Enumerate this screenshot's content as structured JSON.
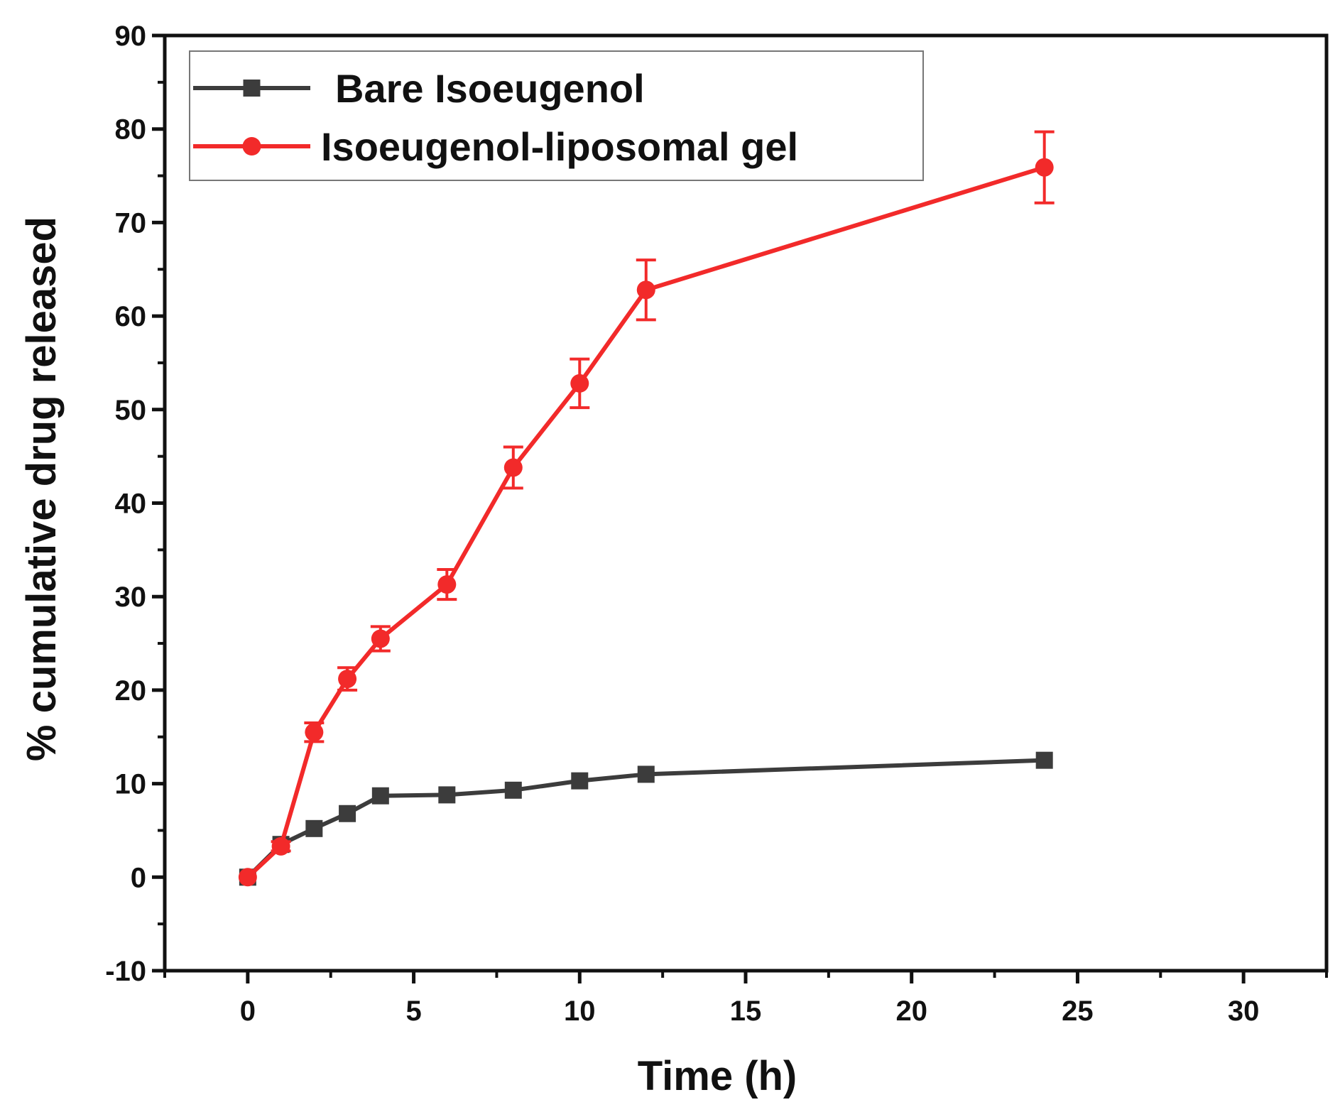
{
  "chart_data": {
    "type": "line",
    "title": "",
    "xlabel": "Time (h)",
    "ylabel": "% cumulative drug released",
    "xlim": [
      -2.5,
      32.5
    ],
    "ylim": [
      -10,
      90
    ],
    "xticks": [
      0,
      5,
      10,
      15,
      20,
      25,
      30
    ],
    "yticks": [
      -10,
      0,
      10,
      20,
      30,
      40,
      50,
      60,
      70,
      80,
      90
    ],
    "x_tick_labels": [
      "0",
      "5",
      "10",
      "15",
      "20",
      "25",
      "30"
    ],
    "y_tick_labels": [
      "-10",
      "0",
      "10",
      "20",
      "30",
      "40",
      "50",
      "60",
      "70",
      "80",
      "90"
    ],
    "grid": false,
    "legend_position": "top-left",
    "series": [
      {
        "name": "Bare Isoeugenol",
        "color": "#3c3c3c",
        "marker": "square",
        "x": [
          0,
          1,
          2,
          3,
          4,
          6,
          8,
          10,
          12,
          24
        ],
        "values": [
          0,
          3.5,
          5.2,
          6.8,
          8.7,
          8.8,
          9.3,
          10.3,
          11.0,
          12.5
        ],
        "errors": [
          0,
          0,
          0,
          0,
          0,
          0,
          0,
          0,
          0,
          0
        ]
      },
      {
        "name": "Isoeugenol-liposomal gel",
        "color": "#f22a2a",
        "marker": "circle",
        "x": [
          0,
          1,
          2,
          3,
          4,
          6,
          8,
          10,
          12,
          24
        ],
        "values": [
          0,
          3.3,
          15.5,
          21.2,
          25.5,
          31.3,
          43.8,
          52.8,
          62.8,
          75.9
        ],
        "errors": [
          0,
          0.5,
          1.0,
          1.2,
          1.3,
          1.6,
          2.2,
          2.6,
          3.2,
          3.8
        ]
      }
    ]
  }
}
